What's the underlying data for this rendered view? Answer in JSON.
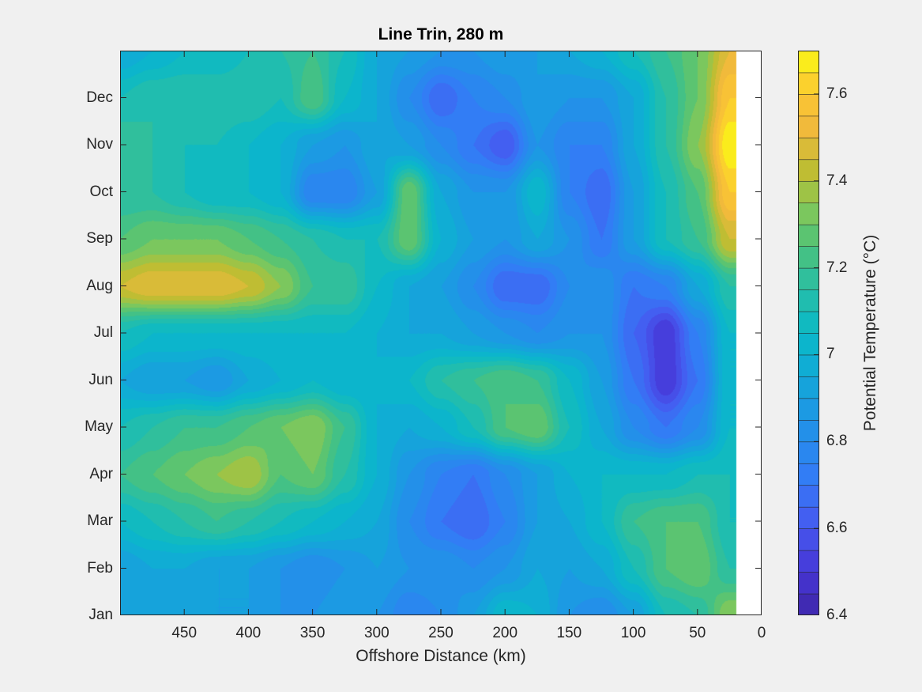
{
  "chart_data": {
    "type": "heatmap",
    "subtype": "filled-contour",
    "title": "Line Trin, 280 m",
    "xlabel": "Offshore Distance (km)",
    "ylabel": "",
    "colorbar_label": "Potential Temperature (°C)",
    "xlim": [
      500,
      0
    ],
    "x_reversed": true,
    "data_xlim": [
      500,
      20
    ],
    "x_ticks": [
      450,
      400,
      350,
      300,
      250,
      200,
      150,
      100,
      50,
      0
    ],
    "x_tick_labels": [
      "450",
      "400",
      "350",
      "300",
      "250",
      "200",
      "150",
      "100",
      "50",
      "0"
    ],
    "y_ticks": [
      0,
      1,
      2,
      3,
      4,
      5,
      6,
      7,
      8,
      9,
      10,
      11
    ],
    "y_tick_labels": [
      "Jan",
      "Feb",
      "Mar",
      "Apr",
      "May",
      "Jun",
      "Jul",
      "Aug",
      "Sep",
      "Oct",
      "Nov",
      "Dec"
    ],
    "ylim_months": [
      0,
      12
    ],
    "clim": [
      6.4,
      7.7
    ],
    "contour_step": 0.05,
    "colorbar_ticks": [
      6.4,
      6.6,
      6.8,
      7.0,
      7.2,
      7.4,
      7.6
    ],
    "colorbar_tick_labels": [
      "6.4",
      "6.6",
      "6.8",
      "7",
      "7.2",
      "7.4",
      "7.6"
    ],
    "colormap": "parula",
    "grid_x_km": [
      500,
      475,
      450,
      425,
      400,
      375,
      350,
      325,
      300,
      275,
      250,
      225,
      200,
      175,
      150,
      125,
      100,
      75,
      50,
      25
    ],
    "grid_y_month": [
      0,
      1,
      2,
      3,
      4,
      5,
      6,
      7,
      8,
      9,
      10,
      11,
      12
    ],
    "values": [
      [
        6.9,
        6.9,
        6.9,
        6.9,
        6.9,
        6.85,
        6.85,
        6.9,
        6.85,
        6.75,
        6.8,
        6.9,
        7.05,
        7.0,
        6.85,
        6.8,
        6.9,
        7.1,
        7.15,
        7.35
      ],
      [
        6.9,
        6.95,
        6.95,
        6.9,
        6.9,
        6.85,
        6.8,
        6.85,
        6.9,
        6.85,
        6.85,
        6.8,
        6.85,
        6.95,
        6.9,
        6.95,
        7.1,
        7.25,
        7.3,
        7.15
      ],
      [
        7.05,
        7.1,
        7.15,
        7.2,
        7.15,
        7.1,
        7.05,
        7.0,
        6.95,
        6.8,
        6.7,
        6.65,
        6.75,
        6.9,
        6.95,
        7.05,
        7.2,
        7.25,
        7.25,
        7.1
      ],
      [
        7.2,
        7.25,
        7.3,
        7.35,
        7.4,
        7.25,
        7.3,
        7.15,
        7.0,
        6.85,
        6.75,
        6.7,
        6.8,
        6.9,
        7.0,
        7.05,
        7.05,
        7.05,
        7.1,
        7.1
      ],
      [
        7.1,
        7.15,
        7.2,
        7.2,
        7.25,
        7.3,
        7.35,
        7.2,
        7.0,
        6.95,
        7.0,
        7.1,
        7.25,
        7.3,
        7.1,
        6.95,
        6.8,
        6.7,
        6.8,
        7.05
      ],
      [
        6.95,
        6.9,
        6.9,
        6.85,
        6.95,
        7.0,
        7.05,
        7.0,
        7.0,
        7.05,
        7.15,
        7.2,
        7.25,
        7.2,
        7.05,
        6.9,
        6.7,
        6.5,
        6.7,
        7.05
      ],
      [
        7.1,
        7.05,
        7.05,
        7.05,
        7.05,
        7.05,
        7.05,
        7.05,
        7.0,
        6.95,
        6.95,
        6.9,
        6.85,
        6.8,
        6.85,
        6.85,
        6.65,
        6.5,
        6.75,
        7.05
      ],
      [
        7.45,
        7.5,
        7.5,
        7.5,
        7.45,
        7.35,
        7.2,
        7.2,
        7.05,
        6.95,
        6.9,
        6.8,
        6.65,
        6.65,
        6.8,
        6.85,
        6.7,
        6.75,
        6.95,
        7.15
      ],
      [
        7.25,
        7.3,
        7.3,
        7.3,
        7.25,
        7.2,
        7.15,
        7.1,
        7.1,
        7.3,
        7.0,
        6.9,
        6.85,
        6.95,
        6.85,
        6.7,
        6.9,
        7.1,
        7.2,
        7.45
      ],
      [
        7.15,
        7.15,
        7.1,
        7.05,
        7.05,
        7.0,
        6.75,
        6.75,
        6.9,
        7.3,
        6.95,
        6.85,
        6.85,
        7.05,
        6.75,
        6.65,
        6.9,
        7.1,
        7.25,
        7.6
      ],
      [
        7.2,
        7.15,
        7.1,
        7.1,
        7.05,
        7.0,
        6.9,
        6.85,
        6.95,
        6.9,
        6.8,
        6.7,
        6.6,
        6.85,
        6.75,
        6.75,
        6.95,
        7.15,
        7.35,
        7.7
      ],
      [
        7.1,
        7.15,
        7.15,
        7.15,
        7.15,
        7.1,
        7.25,
        7.05,
        6.95,
        6.8,
        6.65,
        6.75,
        6.8,
        6.9,
        6.85,
        6.85,
        6.95,
        7.15,
        7.3,
        7.6
      ],
      [
        6.95,
        7.0,
        7.05,
        7.05,
        7.1,
        7.15,
        7.2,
        7.1,
        6.95,
        6.9,
        6.85,
        6.85,
        6.9,
        6.9,
        6.95,
        7.0,
        7.1,
        7.2,
        7.3,
        7.5
      ]
    ]
  }
}
